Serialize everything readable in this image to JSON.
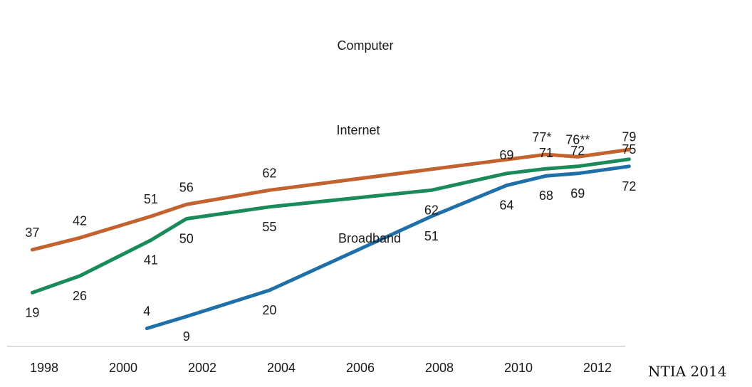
{
  "chart_data": {
    "type": "line",
    "title": "",
    "xlabel": "",
    "ylabel": "",
    "source": "NTIA 2014",
    "grid": false,
    "xlim": [
      1997.6,
      2013.1
    ],
    "ylim": [
      0,
      82
    ],
    "x_ticks": [
      1998,
      2000,
      2002,
      2004,
      2006,
      2008,
      2010,
      2012
    ],
    "series": [
      {
        "name": "Computer",
        "color": "#c1622f",
        "points": [
          {
            "x": 1997.7,
            "y": 37,
            "label": "37"
          },
          {
            "x": 1998.9,
            "y": 42,
            "label": "42"
          },
          {
            "x": 2000.7,
            "y": 51,
            "label": "51"
          },
          {
            "x": 2001.6,
            "y": 56,
            "label": "56"
          },
          {
            "x": 2003.7,
            "y": 62,
            "label": "62"
          },
          {
            "x": 2010.7,
            "y": 77,
            "label": "77*"
          },
          {
            "x": 2011.5,
            "y": 76,
            "label": "76**"
          },
          {
            "x": 2012.8,
            "y": 79,
            "label": "79"
          }
        ]
      },
      {
        "name": "Internet",
        "color": "#1a8a5a",
        "points": [
          {
            "x": 1997.7,
            "y": 19,
            "label": "19"
          },
          {
            "x": 1998.9,
            "y": 26,
            "label": "26"
          },
          {
            "x": 2000.7,
            "y": 41,
            "label": "41"
          },
          {
            "x": 2001.6,
            "y": 50,
            "label": "50"
          },
          {
            "x": 2003.7,
            "y": 55,
            "label": "55"
          },
          {
            "x": 2007.8,
            "y": 62,
            "label": "62"
          },
          {
            "x": 2009.7,
            "y": 69,
            "label": "69"
          },
          {
            "x": 2010.7,
            "y": 71,
            "label": "71"
          },
          {
            "x": 2011.5,
            "y": 72,
            "label": "72"
          },
          {
            "x": 2012.8,
            "y": 75,
            "label": "75"
          }
        ]
      },
      {
        "name": "Broadband",
        "color": "#1f6fa8",
        "points": [
          {
            "x": 2000.6,
            "y": 4,
            "label": "4"
          },
          {
            "x": 2001.6,
            "y": 9,
            "label": "9"
          },
          {
            "x": 2003.7,
            "y": 20,
            "label": "20"
          },
          {
            "x": 2007.8,
            "y": 51,
            "label": "51"
          },
          {
            "x": 2009.7,
            "y": 64,
            "label": "64"
          },
          {
            "x": 2010.7,
            "y": 68,
            "label": "68"
          },
          {
            "x": 2011.5,
            "y": 69,
            "label": "69"
          },
          {
            "x": 2012.8,
            "y": 72,
            "label": "72"
          }
        ]
      }
    ]
  }
}
